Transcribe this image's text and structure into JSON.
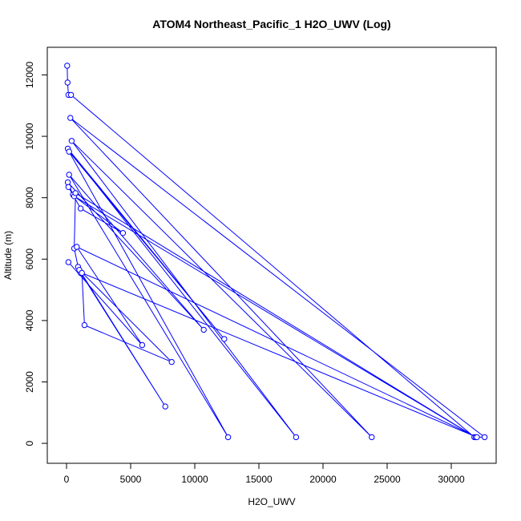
{
  "chart_data": {
    "type": "line",
    "title": "ATOM4 Northeast_Pacific_1 H2O_UWV (Log)",
    "xlabel": "H2O_UWV",
    "ylabel": "Altitude (m)",
    "xlim": [
      -1500,
      33500
    ],
    "ylim": [
      -650,
      12900
    ],
    "x_ticks": [
      0,
      5000,
      10000,
      15000,
      20000,
      25000,
      30000
    ],
    "y_ticks": [
      0,
      2000,
      4000,
      6000,
      8000,
      10000,
      12000
    ],
    "grid": false,
    "series": [
      {
        "color": "#0000ff",
        "marker": "open-circle",
        "points": [
          {
            "x": 50,
            "y": 12300
          },
          {
            "x": 80,
            "y": 11750
          },
          {
            "x": 150,
            "y": 11350
          },
          {
            "x": 350,
            "y": 11350
          },
          {
            "x": 31800,
            "y": 200
          },
          {
            "x": 32600,
            "y": 200
          },
          {
            "x": 300,
            "y": 10600
          },
          {
            "x": 23800,
            "y": 200
          },
          {
            "x": 400,
            "y": 9850
          },
          {
            "x": 17900,
            "y": 200
          },
          {
            "x": 100,
            "y": 9600
          },
          {
            "x": 12300,
            "y": 3400
          },
          {
            "x": 200,
            "y": 9500
          },
          {
            "x": 12600,
            "y": 200
          },
          {
            "x": 200,
            "y": 8750
          },
          {
            "x": 10700,
            "y": 3700
          },
          {
            "x": 100,
            "y": 8500
          },
          {
            "x": 500,
            "y": 8100
          },
          {
            "x": 150,
            "y": 8350
          },
          {
            "x": 1100,
            "y": 7650
          },
          {
            "x": 4400,
            "y": 6850
          },
          {
            "x": 600,
            "y": 8050
          },
          {
            "x": 31900,
            "y": 200
          },
          {
            "x": 700,
            "y": 8150
          },
          {
            "x": 600,
            "y": 6350
          },
          {
            "x": 900,
            "y": 5750
          },
          {
            "x": 1100,
            "y": 5550
          },
          {
            "x": 7700,
            "y": 1200
          },
          {
            "x": 1000,
            "y": 5650
          },
          {
            "x": 8200,
            "y": 2650
          },
          {
            "x": 1400,
            "y": 3850
          },
          {
            "x": 1200,
            "y": 5550
          },
          {
            "x": 32000,
            "y": 200
          },
          {
            "x": 800,
            "y": 6400
          },
          {
            "x": 5900,
            "y": 3200
          },
          {
            "x": 150,
            "y": 5900
          }
        ]
      }
    ]
  }
}
